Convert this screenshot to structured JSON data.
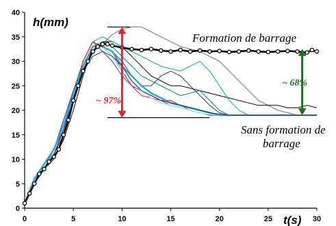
{
  "chart_data": {
    "type": "line",
    "xlabel": "t(s)",
    "ylabel": "h(mm)",
    "xlim": [
      0,
      30
    ],
    "ylim": [
      0,
      40
    ],
    "xticks": [
      0,
      5,
      10,
      15,
      20,
      25,
      30
    ],
    "yticks": [
      0,
      5,
      10,
      15,
      20,
      25,
      30,
      35,
      40
    ],
    "grid": false,
    "legend": "none",
    "annotations": {
      "with_dam": "Formation de barrage",
      "without_dam_line1": "Sans formation de",
      "without_dam_line2": "barrage",
      "pct_red": "~ 97%",
      "pct_green": "~ 68%"
    },
    "reference_lines": {
      "upper": 37,
      "lower": 18.5,
      "upper_x": [
        8.5,
        11
      ],
      "lower_x": [
        8.5,
        19
      ]
    },
    "arrows": {
      "red": {
        "x": 10,
        "y_from": 18.5,
        "y_to": 37,
        "color": "#e8202a"
      },
      "green": {
        "x": 28.5,
        "y_from": 19,
        "y_to": 32.5,
        "color": "#1e6e2a"
      }
    },
    "series": [
      {
        "color": "#000000",
        "width": 2.6,
        "marker": true,
        "x": [
          0,
          0.5,
          1,
          1.5,
          2,
          2.5,
          3,
          3.5,
          4,
          4.5,
          5,
          5.5,
          6,
          6.5,
          7,
          7.5,
          8,
          8.5,
          9,
          10,
          11,
          12,
          13,
          14,
          15,
          16,
          17,
          18,
          19,
          20,
          21,
          22,
          23,
          24,
          25,
          26,
          27,
          28,
          29,
          29.5,
          30
        ],
        "y": [
          1,
          3,
          5,
          7,
          8,
          9.5,
          10.5,
          12,
          15,
          18,
          22,
          25,
          28,
          30,
          32,
          33,
          33.5,
          33.5,
          33.2,
          32.8,
          32.5,
          32.3,
          32.5,
          32.2,
          32,
          32.3,
          32,
          32.2,
          32,
          32.1,
          31.9,
          32,
          32.2,
          32,
          31.9,
          32,
          32.1,
          32,
          31.8,
          32.3,
          32
        ]
      },
      {
        "color": "#8c8c8c",
        "width": 1.3,
        "x": [
          0,
          1,
          2,
          3,
          4,
          5,
          6,
          7,
          8,
          9,
          10,
          11,
          12,
          13,
          14,
          15,
          16,
          17,
          18,
          19,
          20,
          21,
          22,
          23,
          24,
          25,
          26,
          27,
          28,
          29,
          30
        ],
        "y": [
          1,
          5,
          8,
          11,
          16,
          22,
          28,
          32,
          33.5,
          35.5,
          36.5,
          37,
          37,
          36,
          35,
          34,
          33,
          32.5,
          32,
          31,
          30,
          28,
          26,
          24,
          22,
          21,
          20,
          19.5,
          19,
          19,
          19
        ]
      },
      {
        "color": "#000000",
        "width": 1,
        "x": [
          0,
          1,
          2,
          3,
          4,
          5,
          6,
          7,
          8,
          9,
          10,
          11,
          12,
          13,
          14,
          15,
          16,
          17,
          18,
          19,
          20,
          21,
          22,
          23,
          24,
          25,
          26,
          27,
          28,
          29,
          30
        ],
        "y": [
          1,
          5,
          8,
          10,
          14,
          20,
          27,
          33,
          34,
          34,
          33,
          31,
          29,
          27,
          26,
          25,
          25,
          24.5,
          24,
          23.5,
          23,
          22.5,
          22,
          21.5,
          21,
          21,
          21,
          20.5,
          20.5,
          21,
          20.5
        ]
      },
      {
        "color": "#2ab0b0",
        "width": 1.2,
        "x": [
          0,
          1,
          2,
          3,
          4,
          5,
          6,
          7,
          8,
          9,
          10,
          11,
          12,
          13,
          14,
          15,
          16,
          17,
          18,
          19,
          20,
          21,
          22,
          23,
          24,
          25,
          26,
          27,
          28,
          29,
          30
        ],
        "y": [
          1,
          6,
          9,
          12,
          17,
          24,
          30,
          34,
          35,
          34,
          33,
          32,
          31,
          30,
          29,
          28.5,
          28,
          29,
          30,
          28,
          25,
          22,
          20,
          19,
          19,
          19,
          19,
          19,
          19,
          19,
          19
        ]
      },
      {
        "color": "#1a8a8a",
        "width": 1.1,
        "x": [
          0,
          1,
          2,
          3,
          4,
          5,
          6,
          7,
          8,
          9,
          10,
          11,
          12,
          13,
          14,
          15,
          16,
          17,
          18,
          19,
          20,
          21,
          22,
          23,
          24,
          25,
          26,
          27,
          28,
          29,
          30
        ],
        "y": [
          1,
          6,
          9,
          12,
          16,
          23,
          29,
          33,
          34,
          33,
          31,
          29,
          27,
          26,
          25,
          24,
          23,
          23.5,
          24,
          22,
          20,
          19,
          19,
          19,
          19,
          19,
          19,
          19,
          19,
          19,
          19
        ]
      },
      {
        "color": "#2e3088",
        "width": 1,
        "x": [
          0,
          1,
          2,
          3,
          4,
          5,
          6,
          7,
          8,
          9,
          10,
          11,
          12,
          13,
          14,
          15,
          16,
          17,
          18,
          19,
          20,
          21,
          22,
          23,
          24,
          25,
          26,
          27,
          28,
          29,
          30
        ],
        "y": [
          1,
          5,
          8,
          12,
          18,
          24,
          29,
          33,
          33,
          32,
          30,
          27,
          25,
          25,
          27,
          28,
          27,
          25,
          23,
          21,
          19.5,
          19,
          19,
          19,
          19,
          19,
          19,
          19,
          19,
          19,
          19
        ]
      },
      {
        "color": "#7a2a8a",
        "width": 1,
        "x": [
          0,
          1,
          2,
          3,
          4,
          5,
          6,
          7,
          8,
          9,
          10,
          11,
          12,
          13,
          14,
          15,
          16,
          17,
          18,
          19,
          20,
          21,
          22,
          23,
          24,
          25,
          26,
          27,
          28,
          29,
          30
        ],
        "y": [
          1,
          5,
          8,
          12,
          16,
          23,
          30,
          34,
          32,
          30,
          27,
          25,
          24,
          23,
          22,
          21,
          20.5,
          20,
          19.5,
          19,
          19,
          19,
          19,
          19,
          19,
          19,
          19,
          19,
          19,
          19,
          19
        ]
      },
      {
        "color": "#e8202a",
        "width": 1.1,
        "x": [
          0,
          1,
          2,
          3,
          4,
          5,
          6,
          7,
          8,
          9,
          10,
          11,
          12,
          13,
          14,
          15,
          16,
          17,
          18,
          19,
          20,
          21,
          22,
          23,
          24,
          25,
          26,
          27,
          28,
          29,
          30
        ],
        "y": [
          1,
          5,
          8,
          11,
          15,
          22,
          30,
          34,
          33,
          32,
          28,
          25,
          23,
          22.5,
          22,
          22,
          21,
          20,
          19.5,
          19,
          19,
          19,
          19,
          19,
          19,
          19,
          19,
          19,
          19,
          19,
          19
        ]
      },
      {
        "color": "#a9e3ef",
        "width": 2,
        "x": [
          0,
          1,
          2,
          3,
          4,
          5,
          6,
          7,
          8,
          9,
          10,
          11,
          12,
          13,
          14,
          15,
          16,
          17,
          18,
          19,
          20,
          21,
          22,
          23,
          24,
          25,
          26,
          27,
          28,
          29,
          30
        ],
        "y": [
          1,
          6,
          9,
          12,
          17,
          23,
          29,
          33,
          33,
          31,
          28,
          26,
          24,
          22.5,
          21.5,
          21,
          20.5,
          20,
          19.5,
          19.2,
          19,
          19,
          19,
          19,
          19,
          19,
          19,
          19,
          19,
          19,
          19
        ]
      },
      {
        "color": "#1fa9e0",
        "width": 2.4,
        "x": [
          0,
          1,
          2,
          3,
          4,
          5,
          6,
          7,
          8,
          9,
          10,
          11,
          12,
          13,
          14,
          15,
          16,
          17,
          18,
          19,
          20,
          21,
          22,
          23,
          24,
          25,
          26,
          27,
          28,
          29,
          30
        ],
        "y": [
          1,
          6,
          9,
          12,
          17,
          23,
          29,
          33,
          33,
          32,
          29,
          27,
          25,
          23.5,
          22.5,
          21.5,
          21,
          20.5,
          20,
          19.5,
          19,
          19,
          19,
          19,
          19,
          19,
          19,
          19,
          19,
          19,
          19
        ]
      },
      {
        "color": "#333333",
        "width": 1,
        "x": [
          0,
          1,
          2,
          3,
          4,
          5,
          6,
          7,
          8,
          9,
          10,
          11,
          12,
          13,
          14,
          15,
          16,
          17,
          18,
          19,
          20,
          21,
          22,
          23,
          24,
          25,
          26,
          27,
          28,
          29,
          30
        ],
        "y": [
          1,
          5,
          8,
          11,
          16,
          22,
          28,
          31,
          32,
          31,
          29,
          26,
          24,
          23,
          22,
          21.5,
          21,
          20.5,
          20,
          19.5,
          19.2,
          19,
          19,
          19,
          19,
          19,
          19,
          19,
          19,
          19,
          19
        ]
      }
    ]
  }
}
